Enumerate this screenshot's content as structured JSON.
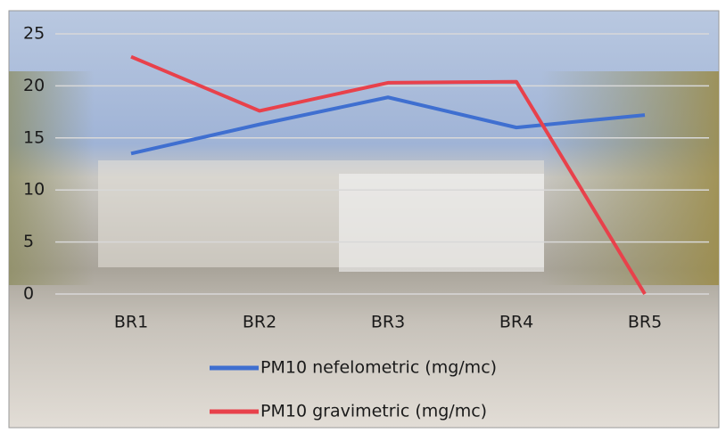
{
  "chart_data": {
    "type": "line",
    "categories": [
      "BR1",
      "BR2",
      "BR3",
      "BR4",
      "BR5"
    ],
    "series": [
      {
        "name": "PM10 nefelometric (mg/mc)",
        "color": "#3f6fd0",
        "values": [
          13.5,
          16.3,
          18.9,
          16,
          17.2
        ]
      },
      {
        "name": "PM10 gravimetric (mg/mc)",
        "color": "#e8414b",
        "values": [
          22.8,
          17.6,
          20.3,
          20.4,
          0
        ]
      }
    ],
    "ylim": [
      0,
      25
    ],
    "yticks": [
      0,
      5,
      10,
      15,
      20,
      25
    ],
    "grid": true
  }
}
